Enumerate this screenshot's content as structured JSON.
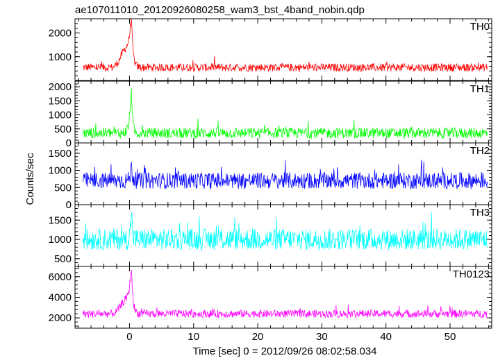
{
  "chart_data": {
    "type": "line",
    "title": "ae107011010_20120926080258_wam3_bst_4band_nobin.qdp",
    "xlabel": "Time [sec] 0 = 2012/09/26 08:02:58.034",
    "ylabel": "Counts/sec",
    "xlim": [
      -8.5,
      56.5
    ],
    "x_ticks": [
      "0",
      "10",
      "20",
      "30",
      "40",
      "50"
    ],
    "grid": false,
    "legend": "none",
    "panels": [
      {
        "name": "TH0",
        "color": "#ff0000",
        "ylim": [
          0,
          2600
        ],
        "y_ticks": [
          1000,
          2000
        ],
        "baseline": 550,
        "noise": 170,
        "spike_freq": 0.02,
        "spike_amp": 350,
        "burst": {
          "peak_time": 0.3,
          "peak_value": 2600,
          "rise": 1.4,
          "decay": 0.6,
          "pre_bump": 550
        }
      },
      {
        "name": "TH1",
        "color": "#00ff00",
        "ylim": [
          0,
          2200
        ],
        "y_ticks": [
          0,
          500,
          1000,
          1500,
          2000
        ],
        "baseline": 350,
        "noise": 190,
        "spike_freq": 0.02,
        "spike_amp": 450,
        "burst": {
          "peak_time": 0.3,
          "peak_value": 2100,
          "rise": 0.8,
          "decay": 0.4,
          "pre_bump": 0
        }
      },
      {
        "name": "TH2",
        "color": "#0000ff",
        "ylim": [
          0,
          1800
        ],
        "y_ticks": [
          0,
          500,
          1000,
          1500
        ],
        "baseline": 700,
        "noise": 240,
        "spike_freq": 0.03,
        "spike_amp": 450,
        "burst": {
          "peak_time": 0.3,
          "peak_value": 1200,
          "rise": 0.5,
          "decay": 0.4,
          "pre_bump": 0
        }
      },
      {
        "name": "TH3",
        "color": "#00ffff",
        "ylim": [
          300,
          1900
        ],
        "y_ticks": [
          500,
          1000,
          1500
        ],
        "baseline": 1000,
        "noise": 280,
        "spike_freq": 0.03,
        "spike_amp": 450,
        "burst": {
          "peak_time": 0.3,
          "peak_value": 1900,
          "rise": 0.4,
          "decay": 0.3,
          "pre_bump": 0
        }
      },
      {
        "name": "TH0123",
        "color": "#ff00ff",
        "ylim": [
          1000,
          7000
        ],
        "y_ticks": [
          2000,
          4000,
          6000
        ],
        "baseline": 2400,
        "noise": 380,
        "spike_freq": 0.02,
        "spike_amp": 800,
        "burst": {
          "peak_time": 0.3,
          "peak_value": 6800,
          "rise": 1.2,
          "decay": 0.6,
          "pre_bump": 1000
        }
      }
    ]
  }
}
